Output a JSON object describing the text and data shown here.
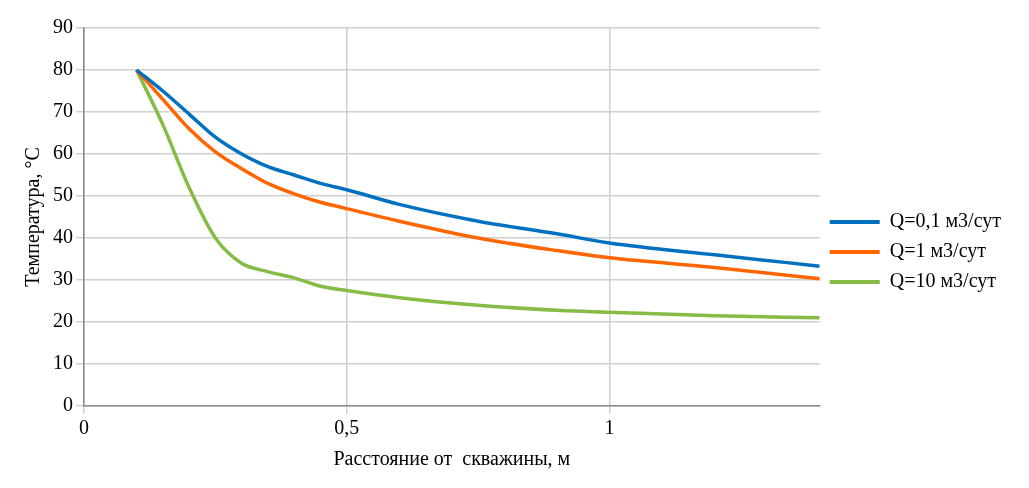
{
  "chart_data": {
    "type": "line",
    "xlabel": "Расстояние от  скважины, м",
    "ylabel": "Температура, °С",
    "xlim": [
      0,
      1.4
    ],
    "xticks": [
      0,
      {
        "value": 0.5,
        "label": "0,5"
      },
      1
    ],
    "ylim": [
      0,
      90
    ],
    "yticks": [
      0,
      10,
      20,
      30,
      40,
      50,
      60,
      70,
      80,
      90
    ],
    "grid": true,
    "legend": "right",
    "marker": "none",
    "line_style": "solid",
    "x": [
      0.1,
      0.15,
      0.2,
      0.25,
      0.3,
      0.35,
      0.4,
      0.45,
      0.5,
      0.6,
      0.75,
      0.9,
      1,
      1.2,
      1.4
    ],
    "series": [
      {
        "name": "Q=0,1 м3/сут",
        "color": "#0070c0",
        "values": [
          80,
          75,
          69.5,
          64,
          60,
          57,
          55,
          53,
          51.5,
          48,
          44,
          41,
          38.8,
          36,
          33.3
        ]
      },
      {
        "name": "Q=1 м3/сут",
        "color": "#ff6600",
        "values": [
          80,
          73,
          66,
          60.5,
          56.5,
          53,
          50.5,
          48.5,
          47,
          44,
          40,
          37,
          35.3,
          33,
          30.3
        ]
      },
      {
        "name": "Q=10 м3/сут",
        "color": "#86bb45",
        "values": [
          80,
          67,
          52,
          40,
          34,
          32,
          30.5,
          28.5,
          27.5,
          25.8,
          24,
          22.8,
          22.3,
          21.5,
          21
        ]
      }
    ]
  }
}
